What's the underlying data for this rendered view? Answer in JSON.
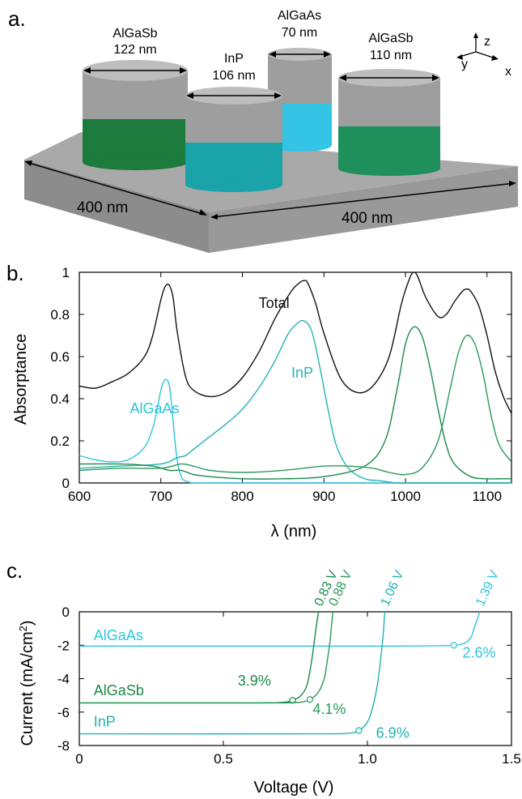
{
  "panels": {
    "a": {
      "label": "a.",
      "pillars": [
        {
          "material": "AlGaSb",
          "diameter": "122 nm",
          "color": "#1b7a3c"
        },
        {
          "material": "InP",
          "diameter": "106 nm",
          "color": "#1aa3a8"
        },
        {
          "material": "AlGaAs",
          "diameter": "70 nm",
          "color": "#33c4e6"
        },
        {
          "material": "AlGaSb",
          "diameter": "110 nm",
          "color": "#1f8f5c"
        }
      ],
      "substrate_width_label": "400 nm",
      "substrate_depth_label": "400 nm",
      "axes": {
        "x": "x",
        "y": "y",
        "z": "z"
      }
    },
    "b": {
      "label": "b."
    },
    "c": {
      "label": "c."
    }
  },
  "colors": {
    "total": "#111111",
    "algaas": "#2ec4dd",
    "inp": "#23b3b0",
    "algasb_a": "#1a8a4a",
    "algasb_b": "#2a9a5c",
    "axis": "#000000"
  },
  "chart_data": [
    {
      "id": "absorptance",
      "type": "line",
      "xlabel": "λ (nm)",
      "ylabel": "Absorptance",
      "xlim": [
        600,
        1130
      ],
      "ylim": [
        0,
        1
      ],
      "xticks": [
        600,
        700,
        800,
        900,
        1000,
        1100
      ],
      "yticks": [
        0,
        0.2,
        0.4,
        0.6,
        0.8,
        1
      ],
      "ytick_labels": [
        "0",
        "0.2",
        "0.4",
        "0.6",
        "0.8",
        "1"
      ],
      "series": [
        {
          "name": "Total",
          "color_key": "total",
          "x": [
            600,
            620,
            640,
            660,
            680,
            690,
            700,
            705,
            710,
            715,
            720,
            730,
            740,
            760,
            780,
            800,
            820,
            840,
            860,
            870,
            875,
            880,
            890,
            900,
            920,
            940,
            960,
            980,
            995,
            1005,
            1010,
            1015,
            1025,
            1040,
            1050,
            1060,
            1070,
            1075,
            1080,
            1090,
            1100,
            1110,
            1120,
            1130
          ],
          "y": [
            0.46,
            0.45,
            0.48,
            0.52,
            0.6,
            0.7,
            0.87,
            0.93,
            0.94,
            0.88,
            0.72,
            0.51,
            0.44,
            0.41,
            0.43,
            0.5,
            0.62,
            0.78,
            0.91,
            0.95,
            0.96,
            0.95,
            0.85,
            0.71,
            0.5,
            0.43,
            0.46,
            0.6,
            0.85,
            0.97,
            1.0,
            0.98,
            0.88,
            0.79,
            0.8,
            0.86,
            0.91,
            0.92,
            0.91,
            0.84,
            0.7,
            0.53,
            0.41,
            0.33
          ]
        },
        {
          "name": "AlGaAs",
          "color_key": "algaas",
          "x": [
            600,
            620,
            640,
            660,
            680,
            690,
            695,
            700,
            705,
            710,
            713,
            716,
            720,
            725,
            730,
            740,
            760,
            800,
            1130
          ],
          "y": [
            0.13,
            0.11,
            0.1,
            0.11,
            0.17,
            0.26,
            0.34,
            0.44,
            0.49,
            0.47,
            0.38,
            0.25,
            0.11,
            0.03,
            0.01,
            0.0,
            0.0,
            0.0,
            0.0
          ]
        },
        {
          "name": "InP",
          "color_key": "inp",
          "x": [
            600,
            650,
            700,
            720,
            730,
            740,
            760,
            780,
            800,
            820,
            840,
            855,
            865,
            875,
            885,
            895,
            905,
            915,
            930,
            950,
            970,
            990,
            1010,
            1130
          ],
          "y": [
            0.07,
            0.08,
            0.09,
            0.12,
            0.13,
            0.16,
            0.22,
            0.28,
            0.35,
            0.45,
            0.58,
            0.7,
            0.75,
            0.77,
            0.72,
            0.55,
            0.35,
            0.18,
            0.07,
            0.02,
            0.01,
            0.0,
            0.0,
            0.0
          ]
        },
        {
          "name": "AlGaSb",
          "color_key": "algasb_a",
          "x": [
            600,
            650,
            690,
            710,
            725,
            740,
            760,
            800,
            850,
            900,
            950,
            975,
            990,
            1000,
            1010,
            1020,
            1030,
            1040,
            1050,
            1060,
            1080,
            1100,
            1120,
            1130
          ],
          "y": [
            0.09,
            0.09,
            0.08,
            0.06,
            0.06,
            0.04,
            0.03,
            0.02,
            0.02,
            0.03,
            0.08,
            0.2,
            0.45,
            0.66,
            0.74,
            0.7,
            0.55,
            0.35,
            0.18,
            0.09,
            0.03,
            0.02,
            0.02,
            0.02
          ]
        },
        {
          "name": "AlGaSb",
          "color_key": "algasb_b",
          "x": [
            600,
            650,
            700,
            725,
            740,
            760,
            800,
            850,
            900,
            930,
            960,
            980,
            1000,
            1020,
            1040,
            1055,
            1065,
            1075,
            1085,
            1095,
            1105,
            1115,
            1130
          ],
          "y": [
            0.06,
            0.07,
            0.07,
            0.09,
            0.08,
            0.06,
            0.05,
            0.06,
            0.08,
            0.08,
            0.07,
            0.05,
            0.04,
            0.07,
            0.2,
            0.45,
            0.62,
            0.7,
            0.66,
            0.52,
            0.32,
            0.18,
            0.1
          ]
        }
      ],
      "annotations": [
        {
          "text": "Total",
          "x": 820,
          "y": 0.83,
          "color_key": "total"
        },
        {
          "text": "InP",
          "x": 860,
          "y": 0.5,
          "color_key": "inp"
        },
        {
          "text": "AlGaAs",
          "x": 662,
          "y": 0.33,
          "color_key": "algaas"
        }
      ]
    },
    {
      "id": "iv",
      "type": "line",
      "xlabel": "Voltage (V)",
      "ylabel": "Current (mA/cm²)",
      "ylabel_main": "Current (mA/cm",
      "ylabel_sup": "2",
      "ylabel_tail": ")",
      "xlim": [
        0,
        1.5
      ],
      "ylim": [
        -8,
        0
      ],
      "xticks": [
        0,
        0.5,
        1.0,
        1.5
      ],
      "xtick_labels": [
        "0",
        "0.5",
        "1.0",
        "1.5"
      ],
      "yticks": [
        0,
        -2,
        -4,
        -6,
        -8
      ],
      "ytick_labels": [
        "0",
        "-2",
        "-4",
        "-6",
        "-8"
      ],
      "series": [
        {
          "name": "AlGaAs",
          "color_key": "algaas",
          "jsc": -2.05,
          "voc": 1.39,
          "voc_label": "1.39 V",
          "mpp": [
            1.3,
            -2.0
          ],
          "eff": "2.6%",
          "x": [
            0,
            1.0,
            1.2,
            1.3,
            1.34,
            1.36,
            1.37,
            1.38,
            1.39
          ],
          "y": [
            -2.05,
            -2.05,
            -2.04,
            -2.0,
            -1.85,
            -1.5,
            -1.0,
            -0.5,
            0
          ]
        },
        {
          "name": "AlGaSb",
          "color_key": "algasb_a",
          "jsc": -5.45,
          "voc": 0.83,
          "voc_label": "0.83 V",
          "mpp": [
            0.74,
            -5.3
          ],
          "eff": "3.9%",
          "x": [
            0,
            0.6,
            0.7,
            0.74,
            0.77,
            0.79,
            0.8,
            0.81,
            0.82,
            0.83
          ],
          "y": [
            -5.45,
            -5.45,
            -5.42,
            -5.3,
            -5.0,
            -4.4,
            -3.6,
            -2.5,
            -1.2,
            0
          ]
        },
        {
          "name": "AlGaSb",
          "color_key": "algasb_b",
          "jsc": -5.45,
          "voc": 0.88,
          "voc_label": "0.88 V",
          "mpp": [
            0.8,
            -5.25
          ],
          "eff": "4.1%",
          "x": [
            0,
            0.6,
            0.75,
            0.8,
            0.83,
            0.85,
            0.86,
            0.87,
            0.875,
            0.88
          ],
          "y": [
            -5.45,
            -5.45,
            -5.43,
            -5.25,
            -4.8,
            -4.0,
            -3.0,
            -1.8,
            -0.9,
            0
          ]
        },
        {
          "name": "InP",
          "color_key": "inp",
          "jsc": -7.3,
          "voc": 1.06,
          "voc_label": "1.06 V",
          "mpp": [
            0.97,
            -7.1
          ],
          "eff": "6.9%",
          "x": [
            0,
            0.8,
            0.93,
            0.97,
            1.0,
            1.02,
            1.035,
            1.045,
            1.055,
            1.06
          ],
          "y": [
            -7.3,
            -7.3,
            -7.27,
            -7.1,
            -6.6,
            -5.6,
            -4.3,
            -3.0,
            -1.3,
            0
          ]
        }
      ],
      "annotations": [
        {
          "text": "AlGaAs",
          "x": 0.05,
          "y": -1.7,
          "color_key": "algaas"
        },
        {
          "text": "AlGaSb",
          "x": 0.05,
          "y": -5.0,
          "color_key": "algasb_a"
        },
        {
          "text": "InP",
          "x": 0.05,
          "y": -6.85,
          "color_key": "inp"
        },
        {
          "text": "3.9%",
          "x": 0.55,
          "y": -4.4,
          "color_key": "algasb_a"
        },
        {
          "text": "4.1%",
          "x": 0.81,
          "y": -6.1,
          "color_key": "algasb_b"
        },
        {
          "text": "6.9%",
          "x": 1.03,
          "y": -7.55,
          "color_key": "inp"
        },
        {
          "text": "2.6%",
          "x": 1.33,
          "y": -2.75,
          "color_key": "algaas"
        }
      ]
    }
  ]
}
